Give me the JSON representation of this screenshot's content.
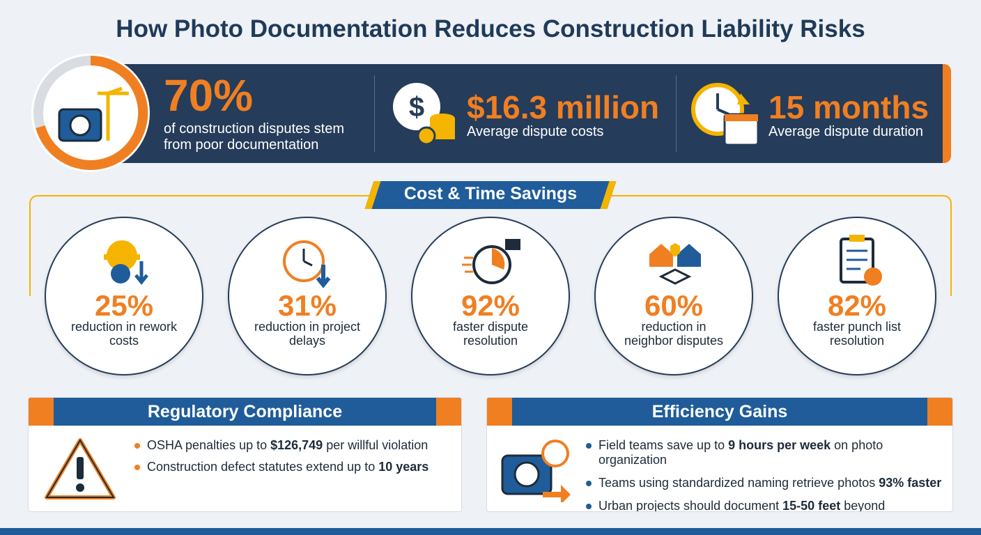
{
  "title": "How Photo Documentation Reduces Construction Liability Risks",
  "stats": [
    {
      "value": "70%",
      "label": "of construction disputes stem from poor documentation"
    },
    {
      "value": "$16.3 million",
      "label": "Average dispute costs"
    },
    {
      "value": "15 months",
      "label": "Average dispute duration"
    }
  ],
  "savings": {
    "title": "Cost & Time Savings",
    "items": [
      {
        "value": "25%",
        "label": "reduction in rework costs"
      },
      {
        "value": "31%",
        "label": "reduction in project delays"
      },
      {
        "value": "92%",
        "label": "faster dispute resolution"
      },
      {
        "value": "60%",
        "label": "reduction in neighbor disputes"
      },
      {
        "value": "82%",
        "label": "faster punch list resolution"
      }
    ]
  },
  "regulatory": {
    "title": "Regulatory Compliance",
    "bullets": [
      [
        {
          "text": "OSHA penalties up to "
        },
        {
          "text": "$126,749",
          "bold": true
        },
        {
          "text": " per willful violation"
        }
      ],
      [
        {
          "text": "Construction defect statutes extend up to "
        },
        {
          "text": "10 years",
          "bold": true
        }
      ]
    ]
  },
  "efficiency": {
    "title": "Efficiency Gains",
    "bullets": [
      [
        {
          "text": "Field teams save up to "
        },
        {
          "text": "9 hours per week",
          "bold": true
        },
        {
          "text": " on photo organization"
        }
      ],
      [
        {
          "text": "Teams using standardized naming retrieve photos "
        },
        {
          "text": "93% faster",
          "bold": true
        }
      ],
      [
        {
          "text": "Urban projects should document "
        },
        {
          "text": "15-50 feet",
          "bold": true
        },
        {
          "text": " beyond boundaries"
        }
      ]
    ]
  }
}
